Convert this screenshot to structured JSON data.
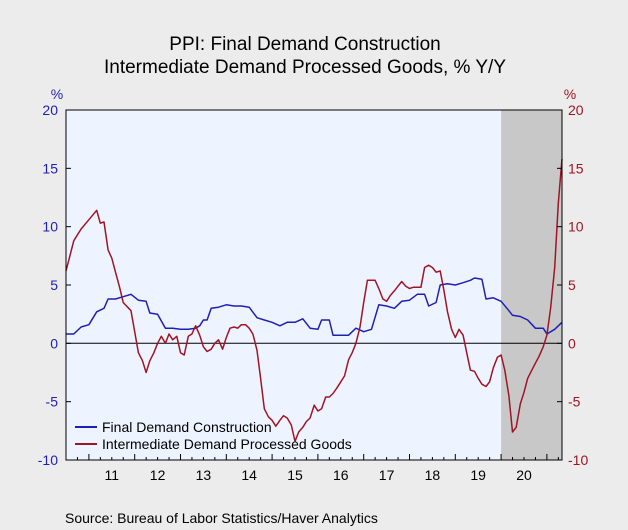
{
  "chart_data": {
    "type": "line",
    "title_lines": [
      "PPI: Final Demand Construction",
      "Intermediate Demand Processed Goods, % Y/Y"
    ],
    "left_unit": "%",
    "right_unit": "%",
    "ylim": [
      -10,
      20
    ],
    "y_ticks": [
      20,
      15,
      10,
      5,
      0,
      -5,
      -10
    ],
    "y_tick_labels": [
      "20",
      "15",
      "10",
      "5",
      "0",
      "-5",
      "-10"
    ],
    "x_range": [
      2010.5,
      2021.33
    ],
    "x_tick_labels": [
      {
        "label": "11",
        "x": 2011.5
      },
      {
        "label": "12",
        "x": 2012.5
      },
      {
        "label": "13",
        "x": 2013.5
      },
      {
        "label": "14",
        "x": 2014.5
      },
      {
        "label": "15",
        "x": 2015.5
      },
      {
        "label": "16",
        "x": 2016.5
      },
      {
        "label": "17",
        "x": 2017.5
      },
      {
        "label": "18",
        "x": 2018.5
      },
      {
        "label": "19",
        "x": 2019.5
      },
      {
        "label": "20",
        "x": 2020.5
      }
    ],
    "recession_shading": {
      "start": 2020.0,
      "end": 2021.33
    },
    "grid": false,
    "legend_position": "bottom-left",
    "series": [
      {
        "name": "Final Demand Construction",
        "color": "#1f1fb4",
        "points": [
          [
            2010.5,
            0.8
          ],
          [
            2010.67,
            0.8
          ],
          [
            2010.83,
            1.4
          ],
          [
            2011.0,
            1.6
          ],
          [
            2011.17,
            2.7
          ],
          [
            2011.33,
            3.0
          ],
          [
            2011.42,
            3.8
          ],
          [
            2011.58,
            3.8
          ],
          [
            2011.75,
            4.0
          ],
          [
            2011.92,
            4.2
          ],
          [
            2012.08,
            3.7
          ],
          [
            2012.25,
            3.6
          ],
          [
            2012.33,
            2.6
          ],
          [
            2012.5,
            2.5
          ],
          [
            2012.67,
            1.3
          ],
          [
            2012.83,
            1.3
          ],
          [
            2013.0,
            1.2
          ],
          [
            2013.17,
            1.2
          ],
          [
            2013.33,
            1.3
          ],
          [
            2013.42,
            1.5
          ],
          [
            2013.5,
            2.0
          ],
          [
            2013.58,
            2.0
          ],
          [
            2013.67,
            3.0
          ],
          [
            2013.83,
            3.1
          ],
          [
            2014.0,
            3.3
          ],
          [
            2014.17,
            3.2
          ],
          [
            2014.33,
            3.2
          ],
          [
            2014.5,
            3.1
          ],
          [
            2014.67,
            2.2
          ],
          [
            2014.83,
            2.0
          ],
          [
            2015.0,
            1.8
          ],
          [
            2015.17,
            1.5
          ],
          [
            2015.33,
            1.8
          ],
          [
            2015.5,
            1.8
          ],
          [
            2015.67,
            2.1
          ],
          [
            2015.83,
            1.3
          ],
          [
            2016.0,
            1.2
          ],
          [
            2016.08,
            2.0
          ],
          [
            2016.25,
            2.0
          ],
          [
            2016.33,
            0.7
          ],
          [
            2016.5,
            0.7
          ],
          [
            2016.67,
            0.7
          ],
          [
            2016.83,
            1.3
          ],
          [
            2017.0,
            1.0
          ],
          [
            2017.17,
            1.2
          ],
          [
            2017.33,
            3.3
          ],
          [
            2017.5,
            3.2
          ],
          [
            2017.67,
            3.0
          ],
          [
            2017.83,
            3.6
          ],
          [
            2018.0,
            3.7
          ],
          [
            2018.17,
            4.2
          ],
          [
            2018.33,
            4.2
          ],
          [
            2018.42,
            3.2
          ],
          [
            2018.58,
            3.5
          ],
          [
            2018.67,
            5.0
          ],
          [
            2018.83,
            5.1
          ],
          [
            2019.0,
            5.0
          ],
          [
            2019.17,
            5.2
          ],
          [
            2019.33,
            5.4
          ],
          [
            2019.42,
            5.6
          ],
          [
            2019.58,
            5.5
          ],
          [
            2019.67,
            3.8
          ],
          [
            2019.83,
            3.9
          ],
          [
            2020.0,
            3.6
          ],
          [
            2020.17,
            2.8
          ],
          [
            2020.25,
            2.4
          ],
          [
            2020.42,
            2.3
          ],
          [
            2020.58,
            2.0
          ],
          [
            2020.75,
            1.3
          ],
          [
            2020.92,
            1.3
          ],
          [
            2021.0,
            0.8
          ],
          [
            2021.17,
            1.2
          ],
          [
            2021.33,
            1.8
          ]
        ]
      },
      {
        "name": "Intermediate Demand Processed Goods",
        "color": "#a01424",
        "points": [
          [
            2010.5,
            6.2
          ],
          [
            2010.67,
            8.8
          ],
          [
            2010.83,
            9.8
          ],
          [
            2011.0,
            10.6
          ],
          [
            2011.17,
            11.4
          ],
          [
            2011.25,
            10.3
          ],
          [
            2011.33,
            10.4
          ],
          [
            2011.42,
            8.0
          ],
          [
            2011.5,
            7.3
          ],
          [
            2011.58,
            6.1
          ],
          [
            2011.67,
            4.8
          ],
          [
            2011.75,
            3.5
          ],
          [
            2011.92,
            2.8
          ],
          [
            2012.0,
            1.0
          ],
          [
            2012.08,
            -0.8
          ],
          [
            2012.17,
            -1.5
          ],
          [
            2012.25,
            -2.5
          ],
          [
            2012.33,
            -1.5
          ],
          [
            2012.42,
            -0.8
          ],
          [
            2012.5,
            0.0
          ],
          [
            2012.58,
            0.6
          ],
          [
            2012.67,
            0.0
          ],
          [
            2012.75,
            0.8
          ],
          [
            2012.83,
            0.3
          ],
          [
            2012.92,
            0.6
          ],
          [
            2013.0,
            -0.8
          ],
          [
            2013.08,
            -1.0
          ],
          [
            2013.17,
            0.6
          ],
          [
            2013.25,
            0.8
          ],
          [
            2013.33,
            1.5
          ],
          [
            2013.42,
            0.7
          ],
          [
            2013.5,
            -0.3
          ],
          [
            2013.58,
            -0.7
          ],
          [
            2013.67,
            -0.5
          ],
          [
            2013.75,
            0.0
          ],
          [
            2013.83,
            0.3
          ],
          [
            2013.92,
            -0.5
          ],
          [
            2014.0,
            0.5
          ],
          [
            2014.08,
            1.3
          ],
          [
            2014.17,
            1.4
          ],
          [
            2014.25,
            1.3
          ],
          [
            2014.33,
            1.6
          ],
          [
            2014.42,
            1.6
          ],
          [
            2014.5,
            1.3
          ],
          [
            2014.58,
            0.8
          ],
          [
            2014.67,
            -0.6
          ],
          [
            2014.75,
            -3.0
          ],
          [
            2014.83,
            -5.6
          ],
          [
            2014.92,
            -6.3
          ],
          [
            2015.0,
            -6.6
          ],
          [
            2015.08,
            -7.1
          ],
          [
            2015.17,
            -6.6
          ],
          [
            2015.25,
            -6.2
          ],
          [
            2015.33,
            -6.4
          ],
          [
            2015.42,
            -7.0
          ],
          [
            2015.5,
            -8.4
          ],
          [
            2015.58,
            -7.6
          ],
          [
            2015.67,
            -7.2
          ],
          [
            2015.75,
            -6.7
          ],
          [
            2015.83,
            -6.4
          ],
          [
            2015.92,
            -5.3
          ],
          [
            2016.0,
            -5.8
          ],
          [
            2016.08,
            -5.6
          ],
          [
            2016.17,
            -4.6
          ],
          [
            2016.25,
            -4.6
          ],
          [
            2016.33,
            -4.3
          ],
          [
            2016.42,
            -3.8
          ],
          [
            2016.5,
            -3.3
          ],
          [
            2016.58,
            -2.8
          ],
          [
            2016.67,
            -1.4
          ],
          [
            2016.75,
            -0.8
          ],
          [
            2016.83,
            0.0
          ],
          [
            2016.92,
            1.4
          ],
          [
            2017.0,
            3.5
          ],
          [
            2017.08,
            5.4
          ],
          [
            2017.17,
            5.4
          ],
          [
            2017.25,
            5.4
          ],
          [
            2017.33,
            4.7
          ],
          [
            2017.42,
            3.8
          ],
          [
            2017.5,
            3.6
          ],
          [
            2017.58,
            4.1
          ],
          [
            2017.67,
            4.5
          ],
          [
            2017.75,
            4.9
          ],
          [
            2017.83,
            5.3
          ],
          [
            2017.92,
            4.9
          ],
          [
            2018.0,
            4.7
          ],
          [
            2018.08,
            4.8
          ],
          [
            2018.17,
            4.8
          ],
          [
            2018.25,
            4.8
          ],
          [
            2018.33,
            6.5
          ],
          [
            2018.42,
            6.7
          ],
          [
            2018.5,
            6.5
          ],
          [
            2018.58,
            6.1
          ],
          [
            2018.67,
            6.2
          ],
          [
            2018.75,
            4.6
          ],
          [
            2018.83,
            2.7
          ],
          [
            2018.92,
            1.2
          ],
          [
            2019.0,
            0.5
          ],
          [
            2019.08,
            1.2
          ],
          [
            2019.17,
            0.7
          ],
          [
            2019.25,
            -0.8
          ],
          [
            2019.33,
            -2.3
          ],
          [
            2019.42,
            -2.4
          ],
          [
            2019.5,
            -3.0
          ],
          [
            2019.58,
            -3.5
          ],
          [
            2019.67,
            -3.7
          ],
          [
            2019.75,
            -3.3
          ],
          [
            2019.83,
            -2.1
          ],
          [
            2019.92,
            -1.2
          ],
          [
            2020.0,
            -1.0
          ],
          [
            2020.08,
            -2.3
          ],
          [
            2020.17,
            -4.5
          ],
          [
            2020.25,
            -7.6
          ],
          [
            2020.33,
            -7.2
          ],
          [
            2020.42,
            -5.2
          ],
          [
            2020.5,
            -4.2
          ],
          [
            2020.58,
            -3.0
          ],
          [
            2020.67,
            -2.3
          ],
          [
            2020.75,
            -1.7
          ],
          [
            2020.83,
            -1.1
          ],
          [
            2020.92,
            -0.3
          ],
          [
            2021.0,
            0.7
          ],
          [
            2021.08,
            3.0
          ],
          [
            2021.17,
            6.5
          ],
          [
            2021.25,
            12.0
          ],
          [
            2021.33,
            15.8
          ]
        ]
      }
    ],
    "source": "Source:  Bureau of Labor Statistics/Haver Analytics",
    "colors": {
      "left_axis": "#1f1fb4",
      "right_axis": "#a01424",
      "plot_bg": "#eef4ff",
      "shading": "#c8c8c8"
    }
  }
}
